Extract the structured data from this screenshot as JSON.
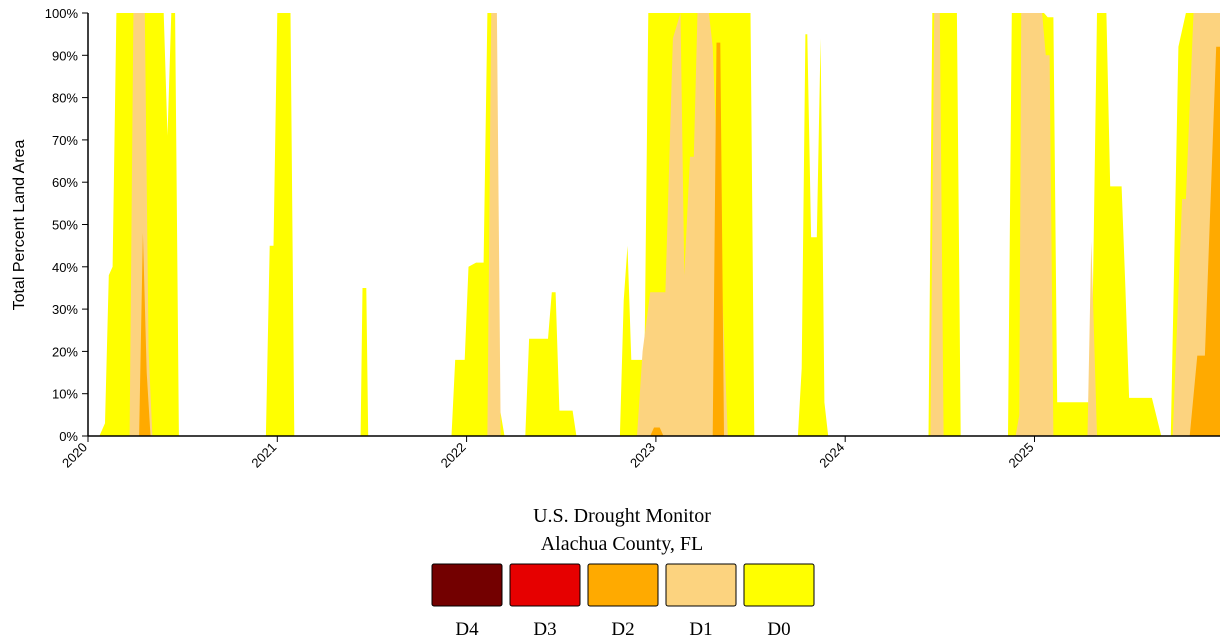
{
  "chart_data": {
    "type": "area",
    "title": "U.S. Drought Monitor",
    "subtitle": "Alachua County, FL",
    "xlabel": "",
    "ylabel": "Total Percent Land Area",
    "xlim": [
      2020.0,
      2025.98
    ],
    "ylim": [
      0,
      100
    ],
    "x_ticks": [
      2020,
      2021,
      2022,
      2023,
      2024,
      2025
    ],
    "x_tick_labels": [
      "2020",
      "2021",
      "2022",
      "2023",
      "2024",
      "2025"
    ],
    "y_ticks": [
      0,
      10,
      20,
      30,
      40,
      50,
      60,
      70,
      80,
      90,
      100
    ],
    "y_tick_labels": [
      "0%",
      "10%",
      "20%",
      "30%",
      "40%",
      "50%",
      "60%",
      "70%",
      "80%",
      "90%",
      "100%"
    ],
    "grid": false,
    "legend_position": "bottom",
    "legend": [
      {
        "name": "D4",
        "color": "#730000"
      },
      {
        "name": "D3",
        "color": "#e60000"
      },
      {
        "name": "D2",
        "color": "#ffaa00"
      },
      {
        "name": "D1",
        "color": "#fcd37f"
      },
      {
        "name": "D0",
        "color": "#ffff00"
      }
    ],
    "series": [
      {
        "name": "D0",
        "color": "#ffff00",
        "points": [
          [
            2020.0,
            0
          ],
          [
            2020.06,
            0
          ],
          [
            2020.09,
            3
          ],
          [
            2020.11,
            38
          ],
          [
            2020.13,
            40
          ],
          [
            2020.15,
            100
          ],
          [
            2020.4,
            100
          ],
          [
            2020.42,
            71
          ],
          [
            2020.44,
            100
          ],
          [
            2020.46,
            100
          ],
          [
            2020.48,
            0
          ],
          [
            2020.94,
            0
          ],
          [
            2020.96,
            45
          ],
          [
            2020.98,
            45
          ],
          [
            2021.0,
            100
          ],
          [
            2021.07,
            100
          ],
          [
            2021.09,
            0
          ],
          [
            2021.44,
            0
          ],
          [
            2021.45,
            35
          ],
          [
            2021.47,
            35
          ],
          [
            2021.48,
            0
          ],
          [
            2021.92,
            0
          ],
          [
            2021.94,
            18
          ],
          [
            2021.99,
            18
          ],
          [
            2022.01,
            40
          ],
          [
            2022.05,
            41
          ],
          [
            2022.09,
            41
          ],
          [
            2022.11,
            100
          ],
          [
            2022.15,
            100
          ],
          [
            2022.17,
            8
          ],
          [
            2022.2,
            0
          ],
          [
            2022.31,
            0
          ],
          [
            2022.33,
            23
          ],
          [
            2022.43,
            23
          ],
          [
            2022.45,
            34
          ],
          [
            2022.47,
            34
          ],
          [
            2022.49,
            6
          ],
          [
            2022.56,
            6
          ],
          [
            2022.58,
            0
          ],
          [
            2022.81,
            0
          ],
          [
            2022.83,
            32
          ],
          [
            2022.85,
            45
          ],
          [
            2022.87,
            18
          ],
          [
            2022.94,
            18
          ],
          [
            2022.96,
            100
          ],
          [
            2023.5,
            100
          ],
          [
            2023.52,
            0
          ],
          [
            2023.75,
            0
          ],
          [
            2023.77,
            16
          ],
          [
            2023.79,
            95
          ],
          [
            2023.8,
            95
          ],
          [
            2023.82,
            47
          ],
          [
            2023.85,
            47
          ],
          [
            2023.87,
            94
          ],
          [
            2023.89,
            8
          ],
          [
            2023.91,
            0
          ],
          [
            2024.44,
            0
          ],
          [
            2024.46,
            100
          ],
          [
            2024.59,
            100
          ],
          [
            2024.61,
            0
          ],
          [
            2024.86,
            0
          ],
          [
            2024.88,
            100
          ],
          [
            2025.05,
            100
          ],
          [
            2025.07,
            99
          ],
          [
            2025.1,
            99
          ],
          [
            2025.12,
            8
          ],
          [
            2025.3,
            8
          ],
          [
            2025.33,
            100
          ],
          [
            2025.38,
            100
          ],
          [
            2025.4,
            59
          ],
          [
            2025.46,
            59
          ],
          [
            2025.48,
            35
          ],
          [
            2025.5,
            9
          ],
          [
            2025.62,
            9
          ],
          [
            2025.67,
            0
          ],
          [
            2025.72,
            0
          ],
          [
            2025.76,
            92
          ],
          [
            2025.8,
            100
          ],
          [
            2025.98,
            100
          ]
        ]
      },
      {
        "name": "D1",
        "color": "#fcd37f",
        "points": [
          [
            2020.0,
            0
          ],
          [
            2020.22,
            0
          ],
          [
            2020.24,
            100
          ],
          [
            2020.3,
            100
          ],
          [
            2020.32,
            20
          ],
          [
            2020.34,
            0
          ],
          [
            2022.0,
            0
          ],
          [
            2022.11,
            0
          ],
          [
            2022.13,
            100
          ],
          [
            2022.16,
            100
          ],
          [
            2022.18,
            0
          ],
          [
            2022.9,
            0
          ],
          [
            2022.93,
            20
          ],
          [
            2022.97,
            34
          ],
          [
            2023.05,
            34
          ],
          [
            2023.09,
            94
          ],
          [
            2023.13,
            100
          ],
          [
            2023.15,
            38
          ],
          [
            2023.18,
            66
          ],
          [
            2023.2,
            66
          ],
          [
            2023.22,
            100
          ],
          [
            2023.28,
            100
          ],
          [
            2023.3,
            92
          ],
          [
            2023.38,
            0
          ],
          [
            2024.45,
            0
          ],
          [
            2024.47,
            100
          ],
          [
            2024.5,
            100
          ],
          [
            2024.52,
            0
          ],
          [
            2024.9,
            0
          ],
          [
            2024.92,
            5
          ],
          [
            2024.93,
            100
          ],
          [
            2025.04,
            100
          ],
          [
            2025.06,
            90
          ],
          [
            2025.08,
            90
          ],
          [
            2025.1,
            0
          ],
          [
            2025.28,
            0
          ],
          [
            2025.3,
            46
          ],
          [
            2025.33,
            0
          ],
          [
            2025.73,
            0
          ],
          [
            2025.78,
            56
          ],
          [
            2025.8,
            56
          ],
          [
            2025.84,
            100
          ],
          [
            2025.98,
            100
          ]
        ]
      },
      {
        "name": "D2",
        "color": "#ffaa00",
        "points": [
          [
            2020.0,
            0
          ],
          [
            2020.27,
            0
          ],
          [
            2020.29,
            48
          ],
          [
            2020.31,
            15
          ],
          [
            2020.33,
            0
          ],
          [
            2022.97,
            0
          ],
          [
            2022.99,
            2
          ],
          [
            2023.02,
            2
          ],
          [
            2023.04,
            0
          ],
          [
            2023.3,
            0
          ],
          [
            2023.32,
            93
          ],
          [
            2023.34,
            93
          ],
          [
            2023.36,
            0
          ],
          [
            2025.82,
            0
          ],
          [
            2025.86,
            19
          ],
          [
            2025.9,
            19
          ],
          [
            2025.96,
            92
          ],
          [
            2025.98,
            92
          ]
        ]
      },
      {
        "name": "D3",
        "color": "#e60000",
        "points": []
      },
      {
        "name": "D4",
        "color": "#730000",
        "points": []
      }
    ]
  }
}
